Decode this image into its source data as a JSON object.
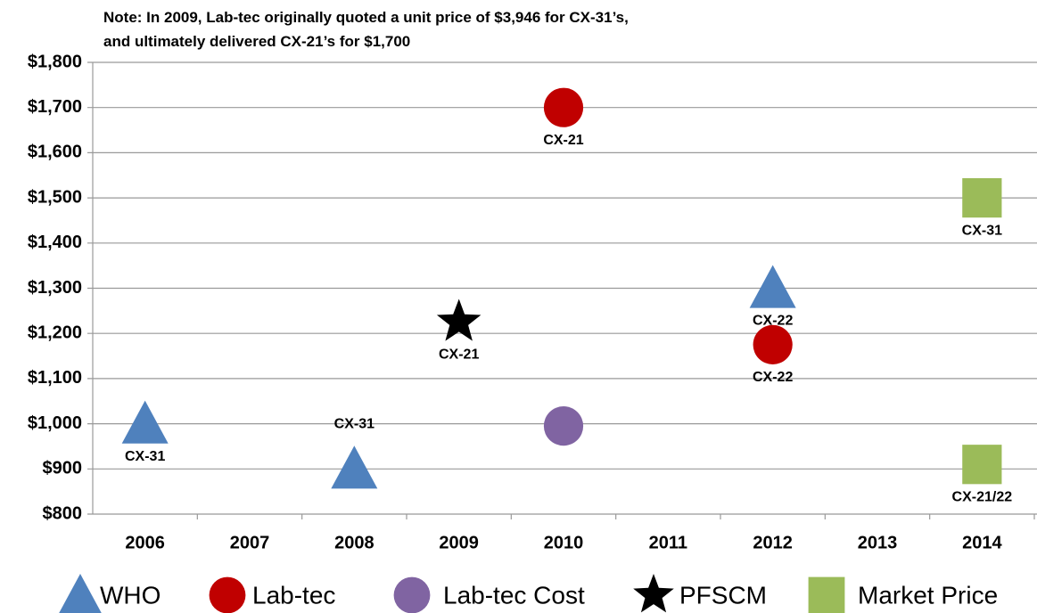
{
  "chart_data": {
    "type": "scatter",
    "note": [
      "Note: In 2009, Lab-tec originally quoted a unit price of $3,946 for CX-31’s,",
      "and ultimately delivered CX-21’s for $1,700"
    ],
    "categories": [
      "2006",
      "2007",
      "2008",
      "2009",
      "2010",
      "2011",
      "2012",
      "2013",
      "2014"
    ],
    "ylim": [
      800,
      1800
    ],
    "yticks": [
      {
        "value": 800,
        "label": "$800"
      },
      {
        "value": 900,
        "label": "$900"
      },
      {
        "value": 1000,
        "label": "$1,000"
      },
      {
        "value": 1100,
        "label": "$1,100"
      },
      {
        "value": 1200,
        "label": "$1,200"
      },
      {
        "value": 1300,
        "label": "$1,300"
      },
      {
        "value": 1400,
        "label": "$1,400"
      },
      {
        "value": 1500,
        "label": "$1,500"
      },
      {
        "value": 1600,
        "label": "$1,600"
      },
      {
        "value": 1700,
        "label": "$1,700"
      },
      {
        "value": 1800,
        "label": "$1,800"
      }
    ],
    "grid": true,
    "legend": "bottom",
    "series": [
      {
        "name": "WHO",
        "color": "#4f81bd",
        "marker": "triangle",
        "x": [
          "2006",
          "2008",
          "2012"
        ],
        "values": [
          1000,
          900,
          1300
        ],
        "point_labels": [
          "CX-31",
          "CX-31",
          "CX-22"
        ]
      },
      {
        "name": "Lab-tec",
        "color": "#c00000",
        "marker": "circle",
        "x": [
          "2010",
          "2012"
        ],
        "values": [
          1700,
          1175
        ],
        "point_labels": [
          "CX-21",
          "CX-22"
        ]
      },
      {
        "name": "Lab-tec Cost",
        "color": "#8064a2",
        "marker": "circle",
        "x": [
          "2010"
        ],
        "values": [
          995
        ]
      },
      {
        "name": "PFSCM",
        "color": "#000000",
        "marker": "star",
        "x": [
          "2009"
        ],
        "values": [
          1225
        ],
        "point_labels": [
          "CX-21"
        ]
      },
      {
        "name": "Market Price",
        "color": "#9bbb59",
        "marker": "square",
        "x": [
          "2014",
          "2014"
        ],
        "values": [
          1500,
          910
        ],
        "point_labels": [
          "CX-31",
          "CX-21/22"
        ]
      }
    ]
  }
}
